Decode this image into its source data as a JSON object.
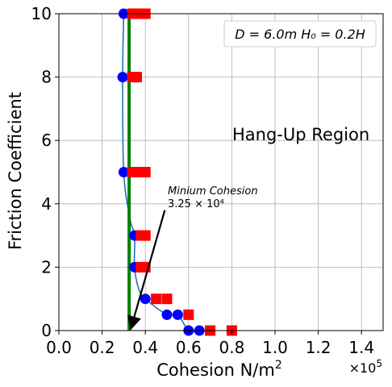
{
  "chart_data": {
    "type": "scatter",
    "xlabel": "Cohesion N/m",
    "xlabel_sup": "2",
    "ylabel": "Friction Coefficient",
    "x_multiplier_base": "×10",
    "x_multiplier_exp": "5",
    "xlim": [
      0,
      150000
    ],
    "ylim": [
      0,
      10
    ],
    "x_ticks": [
      0,
      20000,
      40000,
      60000,
      80000,
      100000,
      120000,
      140000
    ],
    "x_tick_labels": [
      "0.0",
      "0.2",
      "0.4",
      "0.6",
      "0.8",
      "1.0",
      "1.2",
      "1.4"
    ],
    "y_ticks": [
      0,
      2,
      4,
      6,
      8,
      10
    ],
    "y_tick_labels": [
      "0",
      "2",
      "4",
      "6",
      "8",
      "10"
    ],
    "grid": true,
    "legend_text": "D = 6.0m  H₀ = 0.2H",
    "legend_placement": "top-right",
    "region_label": "Hang-Up Region",
    "min_cohesion_x": 32500,
    "annotation": {
      "title": "Minium Cohesion",
      "value": "3.25 × 10⁴",
      "text_at": [
        50000,
        4.4
      ],
      "arrow_from": [
        49000,
        3.8
      ],
      "arrow_to": [
        32500,
        0
      ]
    },
    "colors": {
      "min_line": "#008000",
      "blue_points": "#0000ff",
      "red_points": "#ff0000",
      "curve": "#1f77b4"
    },
    "series": [
      {
        "marker": "circle",
        "color": "#0000ff",
        "points": [
          [
            30000,
            10
          ],
          [
            29500,
            8
          ],
          [
            30000,
            5
          ],
          [
            35000,
            3
          ],
          [
            35000,
            2
          ],
          [
            40000,
            1
          ],
          [
            50000,
            0.5
          ],
          [
            55000,
            0.5
          ],
          [
            60000,
            0
          ],
          [
            65000,
            0
          ]
        ]
      },
      {
        "marker": "square",
        "color": "#ff0000",
        "points": [
          [
            34000,
            10
          ],
          [
            37000,
            10
          ],
          [
            40000,
            10
          ],
          [
            34000,
            8
          ],
          [
            36000,
            8
          ],
          [
            34000,
            5
          ],
          [
            37000,
            5
          ],
          [
            40000,
            5
          ],
          [
            38000,
            3
          ],
          [
            40000,
            3
          ],
          [
            38000,
            2
          ],
          [
            40000,
            2
          ],
          [
            45000,
            1
          ],
          [
            50000,
            1
          ],
          [
            60000,
            0.5
          ],
          [
            70000,
            0
          ],
          [
            80000,
            0
          ]
        ]
      }
    ],
    "curve": [
      [
        30000,
        10
      ],
      [
        29500,
        8
      ],
      [
        30000,
        5
      ],
      [
        33000,
        3.5
      ],
      [
        35000,
        3
      ],
      [
        35000,
        2
      ],
      [
        37000,
        1.3
      ],
      [
        40000,
        1
      ],
      [
        50000,
        0.5
      ],
      [
        55000,
        0.5
      ],
      [
        60000,
        0
      ],
      [
        65000,
        0
      ]
    ]
  }
}
